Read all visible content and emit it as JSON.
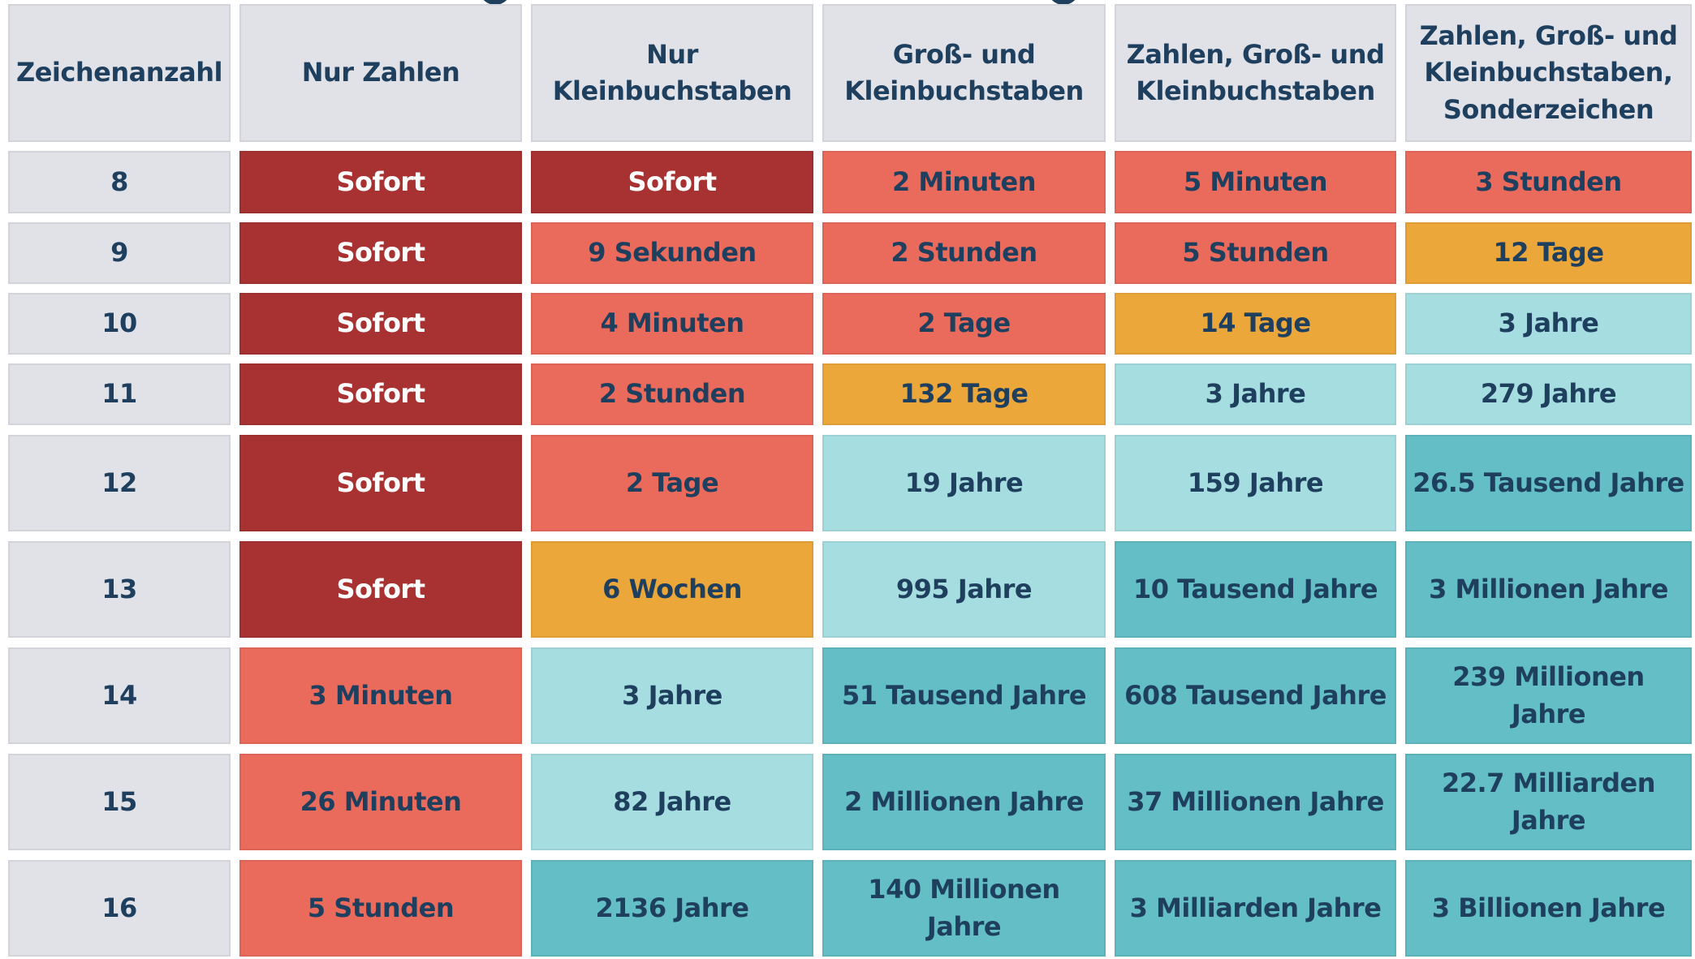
{
  "chart_data": {
    "type": "table",
    "columns": [
      "Zeichenanzahl",
      "Nur Zahlen",
      "Nur Kleinbuchstaben",
      "Groß- und Kleinbuchstaben",
      "Zahlen, Groß- und Kleinbuchstaben",
      "Zahlen, Groß- und Kleinbuchstaben, Sonderzeichen"
    ],
    "rows": [
      {
        "chars": "8",
        "values": [
          "Sofort",
          "Sofort",
          "2 Minuten",
          "5 Minuten",
          "3 Stunden"
        ],
        "levels": [
          "instant",
          "instant",
          "fast",
          "fast",
          "fast"
        ]
      },
      {
        "chars": "9",
        "values": [
          "Sofort",
          "9 Sekunden",
          "2 Stunden",
          "5 Stunden",
          "12 Tage"
        ],
        "levels": [
          "instant",
          "fast",
          "fast",
          "fast",
          "medium"
        ]
      },
      {
        "chars": "10",
        "values": [
          "Sofort",
          "4 Minuten",
          "2 Tage",
          "14 Tage",
          "3 Jahre"
        ],
        "levels": [
          "instant",
          "fast",
          "fast",
          "medium",
          "slow"
        ]
      },
      {
        "chars": "11",
        "values": [
          "Sofort",
          "2 Stunden",
          "132 Tage",
          "3 Jahre",
          "279 Jahre"
        ],
        "levels": [
          "instant",
          "fast",
          "medium",
          "slow",
          "slow"
        ]
      },
      {
        "chars": "12",
        "values": [
          "Sofort",
          "2 Tage",
          "19 Jahre",
          "159 Jahre",
          "26.5 Tausend Jahre"
        ],
        "levels": [
          "instant",
          "fast",
          "slow",
          "slow",
          "safe"
        ]
      },
      {
        "chars": "13",
        "values": [
          "Sofort",
          "6 Wochen",
          "995 Jahre",
          "10 Tausend Jahre",
          "3 Millionen Jahre"
        ],
        "levels": [
          "instant",
          "medium",
          "slow",
          "safe",
          "safe"
        ]
      },
      {
        "chars": "14",
        "values": [
          "3 Minuten",
          "3 Jahre",
          "51 Tausend Jahre",
          "608 Tausend Jahre",
          "239 Millionen Jahre"
        ],
        "levels": [
          "fast",
          "slow",
          "safe",
          "safe",
          "safe"
        ]
      },
      {
        "chars": "15",
        "values": [
          "26 Minuten",
          "82 Jahre",
          "2 Millionen Jahre",
          "37 Millionen Jahre",
          "22.7 Milliarden Jahre"
        ],
        "levels": [
          "fast",
          "slow",
          "safe",
          "safe",
          "safe"
        ]
      },
      {
        "chars": "16",
        "values": [
          "5 Stunden",
          "2136 Jahre",
          "140 Millionen Jahre",
          "3 Milliarden Jahre",
          "3 Billionen Jahre"
        ],
        "levels": [
          "fast",
          "safe",
          "safe",
          "safe",
          "safe"
        ]
      }
    ],
    "level_colors": {
      "header": "#e1e2e8",
      "instant": "#a83232",
      "fast": "#ea6b5c",
      "medium": "#eca73a",
      "slow": "#a6dde1",
      "safe": "#63bec5",
      "text": "#1f3f5f"
    }
  }
}
